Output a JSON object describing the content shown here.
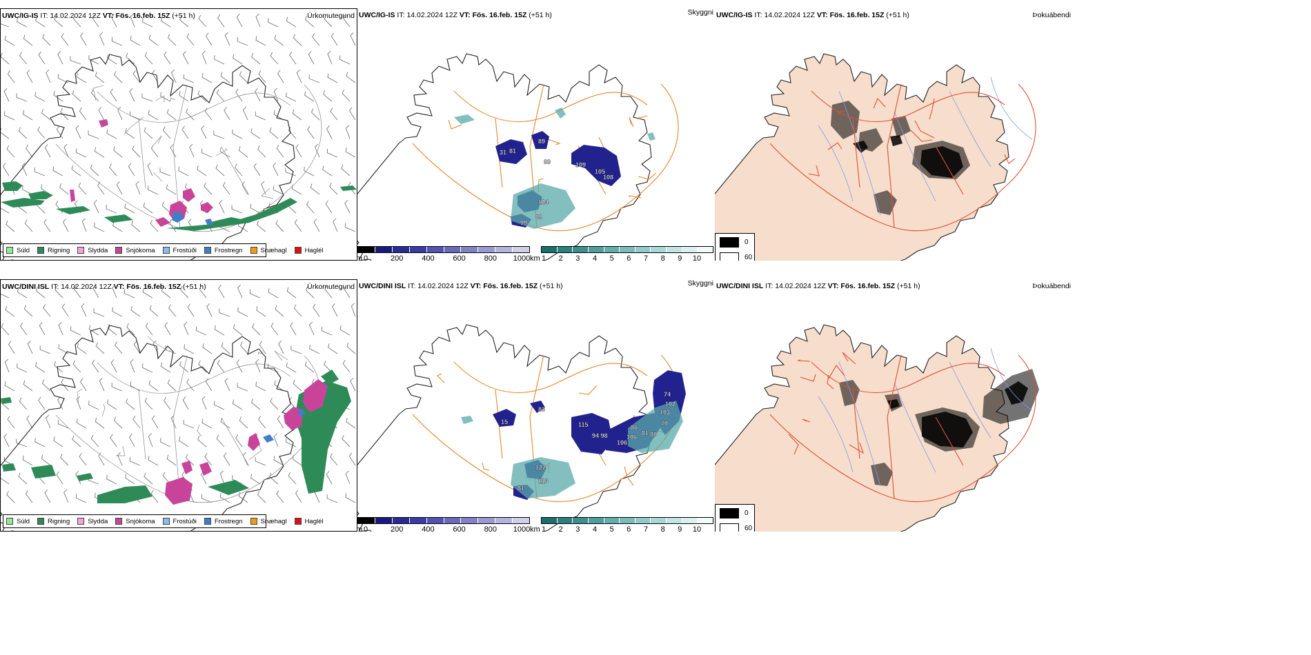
{
  "rows": [
    {
      "model": "UWC/IG-IS",
      "it_label": "IT:",
      "it_value": "14.02.2024 12Z",
      "vt_label": "VT:",
      "vt_value": "Fös. 16.feb. 15Z",
      "lead": "(+51 h)",
      "panels": [
        {
          "title": "Úrkomutegund",
          "labels": []
        },
        {
          "title": "Skyggni",
          "labels": [
            "89",
            "31",
            "81",
            "89",
            "109",
            "105",
            "108",
            "124",
            "99",
            "89"
          ]
        },
        {
          "title": "Þokuábendi",
          "labels": []
        }
      ]
    },
    {
      "model": "UWC/DINI ISL",
      "it_label": "IT:",
      "it_value": "14.02.2024 12Z",
      "vt_label": "VT:",
      "vt_value": "Fös. 16.feb. 15Z",
      "lead": "(+51 h)",
      "panels": [
        {
          "title": "Úrkomutegund",
          "labels": []
        },
        {
          "title": "Skyggni",
          "labels": [
            "15",
            "83",
            "115",
            "94 98",
            "106",
            "86",
            "81",
            "80",
            "74",
            "103",
            "102",
            "70",
            "106",
            "122",
            "113",
            "81"
          ]
        },
        {
          "title": "Þokuábendi",
          "labels": []
        }
      ]
    }
  ],
  "precip_legend": [
    {
      "label": "Súld",
      "color": "#90ee90"
    },
    {
      "label": "Rigning",
      "color": "#2e8b57"
    },
    {
      "label": "Slydda",
      "color": "#f4a6d7"
    },
    {
      "label": "Snjókoma",
      "color": "#c8449b"
    },
    {
      "label": "Frostúði",
      "color": "#87bdf0"
    },
    {
      "label": "Frostregn",
      "color": "#3f7fc8"
    },
    {
      "label": "Snæhagl",
      "color": "#f39c12"
    },
    {
      "label": "Haglél",
      "color": "#e01010"
    }
  ],
  "cloud_base_bar": {
    "unit": "m",
    "ticks": [
      "0",
      "200",
      "400",
      "600",
      "800",
      "1000"
    ],
    "colors": [
      "#000000",
      "#1a1a7e",
      "#2a2a95",
      "#3b3ba5",
      "#5252b0",
      "#6a6abd",
      "#8181c8",
      "#9a9ad3",
      "#b3b3de",
      "#cfcfe9"
    ]
  },
  "visibility_bar": {
    "unit": "km",
    "ticks": [
      "1",
      "2",
      "3",
      "4",
      "5",
      "6",
      "7",
      "8",
      "9",
      "10"
    ],
    "colors": [
      "#1a6e6e",
      "#2a7f7f",
      "#3d8f8f",
      "#4f9e9e",
      "#64adad",
      "#7abcbc",
      "#91caca",
      "#a9d7d7",
      "#c2e4e4",
      "#dcf0f0",
      "#f2fafa"
    ]
  },
  "fog_legend": [
    {
      "label": "0",
      "color": "#000000"
    },
    {
      "label": "60",
      "color": "#ffffff"
    }
  ]
}
